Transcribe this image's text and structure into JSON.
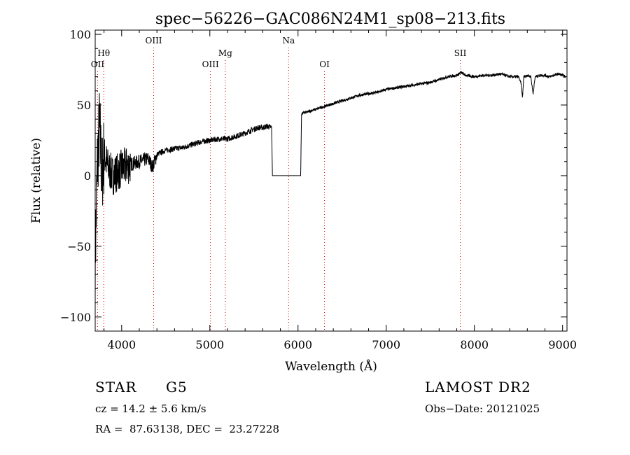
{
  "chart_data": {
    "type": "line",
    "title": "spec−56226−GAC086N24M1_sp08−213.fits",
    "xlabel": "Wavelength (Å)",
    "ylabel": "Flux (relative)",
    "xlim": [
      3700,
      9050
    ],
    "ylim": [
      -110,
      103
    ],
    "xticks": [
      4000,
      5000,
      6000,
      7000,
      8000,
      9000
    ],
    "xtick_labels": [
      "4000",
      "5000",
      "6000",
      "7000",
      "8000",
      "9000"
    ],
    "yticks": [
      100,
      50,
      0,
      -50,
      -100
    ],
    "ytick_labels": [
      "100",
      "50",
      "0",
      "−50",
      "−100"
    ],
    "grid": false,
    "line_color": "#000000",
    "marker_color": "#cc0000",
    "lines": [
      {
        "label": "OII",
        "x": 3727,
        "level": 3
      },
      {
        "label": "Hθ",
        "x": 3797,
        "level": 2
      },
      {
        "label": "OIII",
        "x": 4363,
        "level": 1
      },
      {
        "label": "OIII",
        "x": 5007,
        "level": 3
      },
      {
        "label": "Mg",
        "x": 5175,
        "level": 2
      },
      {
        "label": "Na",
        "x": 5893,
        "level": 1
      },
      {
        "label": "OI",
        "x": 6300,
        "level": 3
      },
      {
        "label": "SII",
        "x": 7840,
        "level": 2
      }
    ],
    "series": [
      {
        "x": [
          3700,
          3725,
          3750,
          3775,
          3800,
          3850,
          3900,
          4000,
          4100,
          4200,
          4300,
          4350,
          4400,
          4500,
          4600,
          4700,
          4800,
          4900,
          5000,
          5100,
          5200,
          5300,
          5400,
          5500,
          5560,
          5600,
          5650,
          5700,
          5710,
          6030,
          6040,
          6100,
          6200,
          6300,
          6400,
          6500,
          6600,
          6700,
          6800,
          6900,
          7000,
          7100,
          7200,
          7300,
          7400,
          7500,
          7600,
          7700,
          7800,
          7850,
          7900,
          8000,
          8100,
          8200,
          8300,
          8400,
          8500,
          8530,
          8545,
          8560,
          8600,
          8640,
          8665,
          8690,
          8750,
          8800,
          8850,
          8900,
          8950,
          9000,
          9030
        ],
        "y": [
          -60,
          10,
          35,
          0,
          15,
          5,
          0,
          5,
          8,
          10,
          12,
          6,
          15,
          18,
          19,
          20,
          22,
          24,
          25,
          26,
          26,
          28,
          30,
          33,
          34,
          34,
          35,
          34,
          0,
          0,
          44,
          45,
          47,
          49,
          51,
          53,
          55,
          57,
          58,
          59,
          61,
          62,
          63,
          64,
          65,
          66,
          68,
          70,
          71,
          73,
          71,
          70,
          71,
          71,
          72,
          70,
          70,
          65,
          55,
          70,
          71,
          70,
          58,
          70,
          71,
          71,
          70,
          71,
          72,
          71,
          70
        ]
      }
    ]
  },
  "info": {
    "object_class": "STAR",
    "subclass": "G5",
    "survey": "LAMOST DR2",
    "redshift": "cz = 14.2 ± 5.6 km/s",
    "obs_date": "Obs−Date: 20121025",
    "coords": "RA =  87.63138, DEC =  23.27228"
  }
}
